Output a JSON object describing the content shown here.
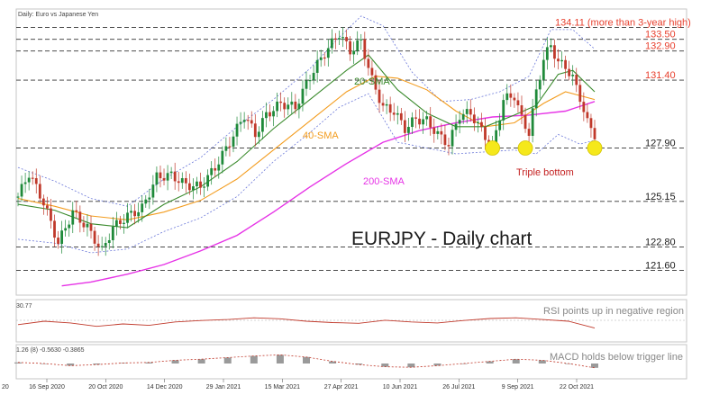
{
  "chart_data": {
    "type": "line",
    "title": "Daily: Euro vs Japanese Yen",
    "overlay_title": "EURJPY - Daily chart",
    "price_range": [
      120.6,
      134.6
    ],
    "x_tick_labels": [
      "16 Sep 2020",
      "20 Oct 2020",
      "14 Dec 2020",
      "29 Jan 2021",
      "15 Mar 2021",
      "27 Apr 2021",
      "10 Jun 2021",
      "26 Jul 2021",
      "9 Sep 2021",
      "22 Oct 2021"
    ],
    "x_edge_label": "20",
    "levels": [
      {
        "value": 134.11,
        "label": "134.11 (more than 3-year high)",
        "color": "#e8402e"
      },
      {
        "value": 133.5,
        "label": "133.50",
        "color": "#e8402e"
      },
      {
        "value": 132.9,
        "label": "132.90",
        "color": "#e8402e"
      },
      {
        "value": 131.4,
        "label": "131.40",
        "color": "#e8402e"
      },
      {
        "value": 127.9,
        "label": "127.90",
        "color": "#1a1a1a"
      },
      {
        "value": 125.15,
        "label": "125.15",
        "color": "#1a1a1a"
      },
      {
        "value": 122.8,
        "label": "122.80",
        "color": "#1a1a1a"
      },
      {
        "value": 121.6,
        "label": "121.60",
        "color": "#1a1a1a"
      }
    ],
    "price_path": [
      [
        0,
        125.4
      ],
      [
        3,
        126.6
      ],
      [
        7,
        125.1
      ],
      [
        11,
        123.0
      ],
      [
        15,
        124.6
      ],
      [
        19,
        123.8
      ],
      [
        23,
        122.6
      ],
      [
        26,
        123.8
      ],
      [
        30,
        124.4
      ],
      [
        34,
        124.8
      ],
      [
        38,
        126.4
      ],
      [
        42,
        126.5
      ],
      [
        46,
        126.0
      ],
      [
        50,
        125.9
      ],
      [
        54,
        126.9
      ],
      [
        58,
        128.2
      ],
      [
        62,
        129.6
      ],
      [
        65,
        128.6
      ],
      [
        68,
        129.6
      ],
      [
        72,
        130.2
      ],
      [
        76,
        130.0
      ],
      [
        80,
        131.6
      ],
      [
        84,
        132.8
      ],
      [
        88,
        133.8
      ],
      [
        91,
        132.9
      ],
      [
        94,
        133.4
      ],
      [
        97,
        131.4
      ],
      [
        100,
        130.0
      ],
      [
        103,
        129.8
      ],
      [
        106,
        128.9
      ],
      [
        109,
        129.4
      ],
      [
        112,
        129.3
      ],
      [
        115,
        128.6
      ],
      [
        118,
        128.1
      ],
      [
        121,
        129.6
      ],
      [
        124,
        129.7
      ],
      [
        127,
        128.8
      ],
      [
        130,
        127.9
      ],
      [
        133,
        130.4
      ],
      [
        136,
        130.6
      ],
      [
        138,
        129.4
      ],
      [
        140,
        128.7
      ],
      [
        142,
        130.8
      ],
      [
        144,
        132.5
      ],
      [
        146,
        133.2
      ],
      [
        148,
        132.3
      ],
      [
        150,
        132.1
      ],
      [
        152,
        131.5
      ],
      [
        154,
        130.5
      ],
      [
        156,
        129.2
      ],
      [
        158,
        128.6
      ]
    ],
    "series": [
      {
        "name": "20-SMA",
        "color": "#3a8a2c",
        "points": [
          [
            0,
            125.0
          ],
          [
            10,
            124.7
          ],
          [
            20,
            124.0
          ],
          [
            30,
            123.8
          ],
          [
            40,
            125.0
          ],
          [
            50,
            125.9
          ],
          [
            60,
            127.2
          ],
          [
            70,
            128.9
          ],
          [
            80,
            130.4
          ],
          [
            90,
            131.9
          ],
          [
            96,
            132.7
          ],
          [
            104,
            130.9
          ],
          [
            112,
            129.7
          ],
          [
            120,
            129.0
          ],
          [
            128,
            129.0
          ],
          [
            136,
            129.6
          ],
          [
            142,
            130.1
          ],
          [
            148,
            131.7
          ],
          [
            152,
            131.9
          ],
          [
            158,
            130.8
          ]
        ]
      },
      {
        "name": "40-SMA",
        "color": "#f39c1e",
        "points": [
          [
            0,
            125.3
          ],
          [
            10,
            124.9
          ],
          [
            20,
            124.4
          ],
          [
            30,
            124.2
          ],
          [
            40,
            124.6
          ],
          [
            50,
            125.2
          ],
          [
            60,
            126.3
          ],
          [
            70,
            127.8
          ],
          [
            80,
            129.3
          ],
          [
            90,
            130.8
          ],
          [
            98,
            131.6
          ],
          [
            104,
            131.5
          ],
          [
            112,
            130.9
          ],
          [
            120,
            129.8
          ],
          [
            128,
            129.0
          ],
          [
            136,
            129.2
          ],
          [
            144,
            130.2
          ],
          [
            150,
            130.8
          ],
          [
            158,
            130.4
          ]
        ]
      },
      {
        "name": "200-SMA",
        "color": "#e633e6",
        "points": [
          [
            12,
            120.8
          ],
          [
            20,
            121.0
          ],
          [
            30,
            121.4
          ],
          [
            40,
            121.9
          ],
          [
            50,
            122.6
          ],
          [
            60,
            123.4
          ],
          [
            70,
            124.6
          ],
          [
            80,
            125.9
          ],
          [
            90,
            127.1
          ],
          [
            100,
            128.2
          ],
          [
            110,
            128.8
          ],
          [
            120,
            129.2
          ],
          [
            130,
            129.5
          ],
          [
            140,
            129.6
          ],
          [
            150,
            129.8
          ],
          [
            158,
            130.3
          ]
        ]
      }
    ],
    "bollinger": {
      "upper": [
        [
          0,
          126.9
        ],
        [
          10,
          126.2
        ],
        [
          20,
          125.3
        ],
        [
          30,
          124.9
        ],
        [
          40,
          126.3
        ],
        [
          50,
          127.4
        ],
        [
          60,
          129.0
        ],
        [
          70,
          130.4
        ],
        [
          80,
          132.0
        ],
        [
          88,
          133.6
        ],
        [
          94,
          134.7
        ],
        [
          100,
          134.2
        ],
        [
          108,
          131.8
        ],
        [
          116,
          130.3
        ],
        [
          124,
          130.4
        ],
        [
          132,
          130.8
        ],
        [
          140,
          131.6
        ],
        [
          146,
          134.0
        ],
        [
          152,
          134.0
        ],
        [
          158,
          133.0
        ]
      ],
      "lower": [
        [
          0,
          123.2
        ],
        [
          10,
          123.0
        ],
        [
          20,
          122.5
        ],
        [
          30,
          122.7
        ],
        [
          40,
          123.6
        ],
        [
          50,
          124.3
        ],
        [
          60,
          125.4
        ],
        [
          70,
          127.2
        ],
        [
          80,
          128.7
        ],
        [
          88,
          130.0
        ],
        [
          96,
          130.7
        ],
        [
          104,
          128.2
        ],
        [
          112,
          127.9
        ],
        [
          120,
          127.6
        ],
        [
          128,
          127.7
        ],
        [
          136,
          127.8
        ],
        [
          142,
          127.6
        ],
        [
          148,
          128.6
        ],
        [
          154,
          128.1
        ],
        [
          158,
          128.3
        ]
      ],
      "color": "#6b78d9"
    },
    "annotations": {
      "sma20": "20-SMA",
      "sma40": "40-SMA",
      "sma200": "200-SMA",
      "triple_bottom": "Triple bottom"
    },
    "bottom_markers": [
      [
        130,
        127.9
      ],
      [
        139,
        127.9
      ],
      [
        158,
        127.9
      ]
    ],
    "rsi": {
      "header": "30.77",
      "note": "RSI points up in negative region",
      "values": [
        0.4,
        0.5,
        0.45,
        0.35,
        0.42,
        0.38,
        0.48,
        0.52,
        0.55,
        0.6,
        0.57,
        0.5,
        0.46,
        0.44,
        0.53,
        0.48,
        0.45,
        0.52,
        0.58,
        0.6,
        0.55,
        0.5,
        0.3
      ]
    },
    "macd": {
      "header": "1.26 (8)  -0.5630  -0.3865",
      "note": "MACD holds below trigger line",
      "values": [
        0.1,
        0.0,
        -0.2,
        -0.1,
        0.05,
        0.1,
        0.3,
        0.4,
        0.55,
        0.7,
        0.8,
        0.6,
        0.2,
        -0.1,
        -0.3,
        -0.35,
        -0.2,
        0.0,
        0.2,
        0.4,
        0.3,
        0.0,
        -0.4
      ]
    }
  }
}
